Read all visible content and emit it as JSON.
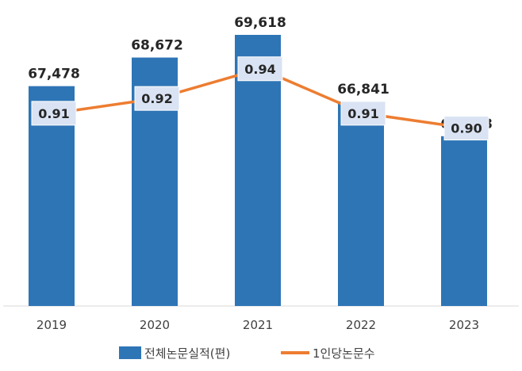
{
  "chart_data": {
    "type": "bar",
    "categories": [
      "2019",
      "2020",
      "2021",
      "2022",
      "2023"
    ],
    "series": [
      {
        "name": "전체논문실적(편)",
        "kind": "bar",
        "color": "#2e75b6",
        "values": [
          67478,
          68672,
          69618,
          66841,
          65388
        ],
        "labels": [
          "67,478",
          "68,672",
          "69,618",
          "66,841",
          "65,388"
        ]
      },
      {
        "name": "1인당논문수",
        "kind": "line",
        "color": "#ed7d31",
        "values": [
          0.91,
          0.92,
          0.94,
          0.91,
          0.9
        ],
        "labels": [
          "0.91",
          "0.92",
          "0.94",
          "0.91",
          "0.90"
        ]
      }
    ],
    "title": "",
    "xlabel": "",
    "ylabel": "",
    "legend": "bottom",
    "grid": false
  }
}
